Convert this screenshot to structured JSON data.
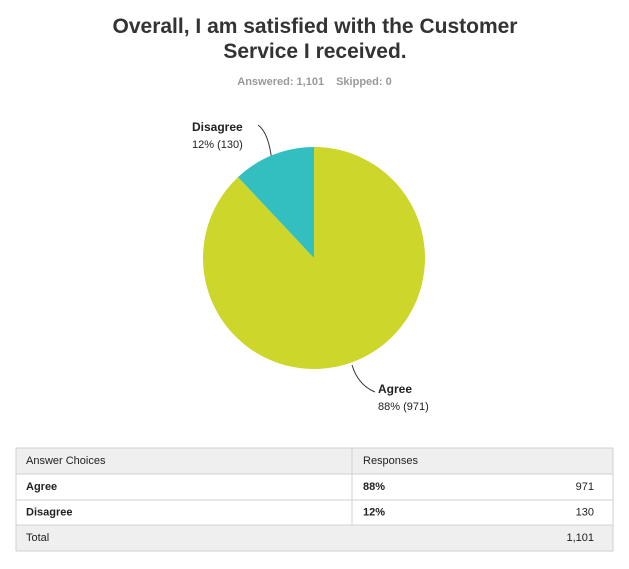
{
  "chart_data": {
    "type": "pie",
    "title": "Overall, I am satisfied with the Customer Service I received.",
    "answered": "Answered: 1,101",
    "skipped": "Skipped: 0",
    "categories": [
      "Agree",
      "Disagree"
    ],
    "values": [
      88,
      12
    ],
    "value_labels": [
      "88% (971)",
      "12% (130)"
    ],
    "colors": [
      "#cdd62a",
      "#33bfbf"
    ]
  },
  "table": {
    "headers": [
      "Answer Choices",
      "Responses"
    ],
    "rows": [
      [
        "Agree",
        "88%",
        "971"
      ],
      [
        "Disagree",
        "12%",
        "130"
      ]
    ],
    "total": [
      "Total",
      "1,101"
    ]
  }
}
